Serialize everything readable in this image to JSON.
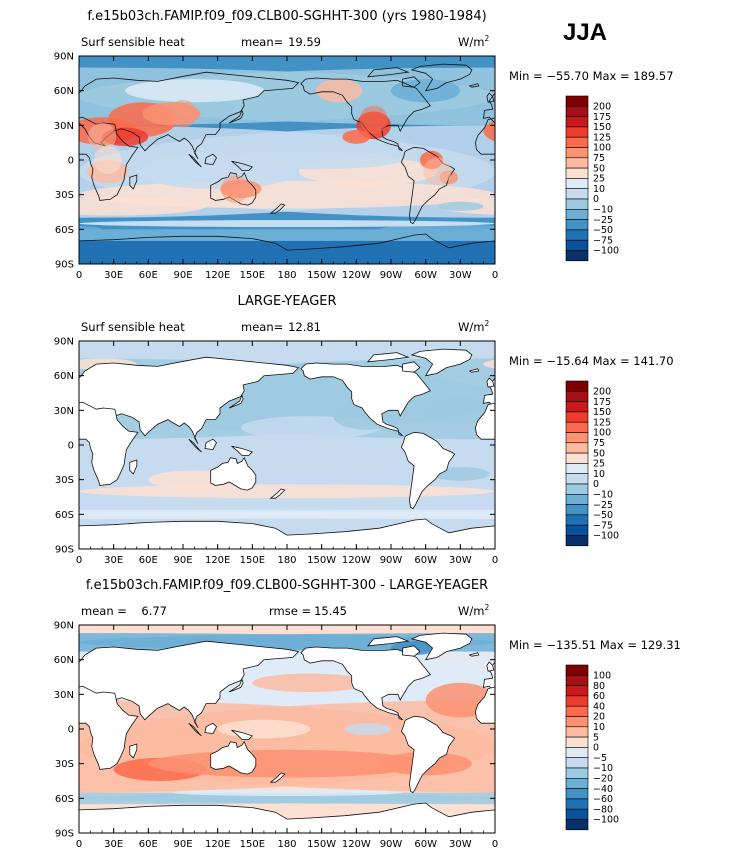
{
  "season": "JJA",
  "palette": {
    "land": "#ffffff",
    "coast": "#111111",
    "missing": "#ffffff"
  },
  "chart_data": [
    {
      "type": "heatmap",
      "title": "f.e15b03ch.FAMIP.f09_f09.CLB00-SGHHT-300 (yrs 1980-1984)",
      "left_label": "Surf  sensible heat",
      "stat_label": "mean=",
      "stat_value": "19.59",
      "rmse_label": "",
      "rmse_value": "",
      "units": "W/m",
      "units_exp": "2",
      "minmax": "Min = −55.70 Max = 189.57",
      "land_masked": false,
      "mean_value": 19.59,
      "min_value": -55.7,
      "max_value": 189.57,
      "xticks": [
        "0",
        "30E",
        "60E",
        "90E",
        "120E",
        "150E",
        "180",
        "150W",
        "120W",
        "90W",
        "60W",
        "30W",
        "0"
      ],
      "yticks": [
        "90N",
        "60N",
        "30N",
        "0",
        "30S",
        "60S",
        "90S"
      ],
      "levels": [
        "200",
        "175",
        "150",
        "125",
        "100",
        "75",
        "50",
        "25",
        "10",
        "0",
        "−10",
        "−25",
        "−50",
        "−75",
        "−100"
      ],
      "colors": [
        "#7f0000",
        "#a50f15",
        "#cb181d",
        "#ef3b2c",
        "#fb6a4a",
        "#fc9272",
        "#fcbba1",
        "#fde0d2",
        "#deebf7",
        "#c6dbef",
        "#9ecae1",
        "#6baed6",
        "#4292c6",
        "#2171b5",
        "#08519c",
        "#08306b"
      ]
    },
    {
      "type": "heatmap",
      "title": "LARGE-YEAGER",
      "left_label": "Surf  sensible heat",
      "stat_label": "mean=",
      "stat_value": "12.81",
      "rmse_label": "",
      "rmse_value": "",
      "units": "W/m",
      "units_exp": "2",
      "minmax": "Min = −15.64 Max = 141.70",
      "land_masked": true,
      "mean_value": 12.81,
      "min_value": -15.64,
      "max_value": 141.7,
      "xticks": [
        "0",
        "30E",
        "60E",
        "90E",
        "120E",
        "150E",
        "180",
        "150W",
        "120W",
        "90W",
        "60W",
        "30W",
        "0"
      ],
      "yticks": [
        "90N",
        "60N",
        "30N",
        "0",
        "30S",
        "60S",
        "90S"
      ],
      "levels": [
        "200",
        "175",
        "150",
        "125",
        "100",
        "75",
        "50",
        "25",
        "10",
        "0",
        "−10",
        "−25",
        "−50",
        "−75",
        "−100"
      ],
      "colors": [
        "#7f0000",
        "#a50f15",
        "#cb181d",
        "#ef3b2c",
        "#fb6a4a",
        "#fc9272",
        "#fcbba1",
        "#fde0d2",
        "#deebf7",
        "#c6dbef",
        "#9ecae1",
        "#6baed6",
        "#4292c6",
        "#2171b5",
        "#08519c",
        "#08306b"
      ]
    },
    {
      "type": "heatmap",
      "title": "f.e15b03ch.FAMIP.f09_f09.CLB00-SGHHT-300 - LARGE-YEAGER",
      "left_label": "mean =",
      "stat_label": "",
      "stat_value": "6.77",
      "rmse_label": "rmse =",
      "rmse_value": "15.45",
      "units": "W/m",
      "units_exp": "2",
      "minmax": "Min = −135.51 Max = 129.31",
      "land_masked": true,
      "mean_value": 6.77,
      "min_value": -135.51,
      "max_value": 129.31,
      "xticks": [
        "0",
        "30E",
        "60E",
        "90E",
        "120E",
        "150E",
        "180",
        "150W",
        "120W",
        "90W",
        "60W",
        "30W",
        "0"
      ],
      "yticks": [
        "90N",
        "60N",
        "30N",
        "0",
        "30S",
        "60S",
        "90S"
      ],
      "levels": [
        "100",
        "80",
        "60",
        "40",
        "20",
        "10",
        "5",
        "0",
        "−5",
        "−10",
        "−20",
        "−40",
        "−60",
        "−80",
        "−100"
      ],
      "colors": [
        "#7f0000",
        "#a50f15",
        "#cb181d",
        "#ef3b2c",
        "#fb6a4a",
        "#fc9272",
        "#fcbba1",
        "#fde0d2",
        "#deebf7",
        "#c6dbef",
        "#9ecae1",
        "#6baed6",
        "#4292c6",
        "#2171b5",
        "#08519c",
        "#08306b"
      ]
    }
  ]
}
